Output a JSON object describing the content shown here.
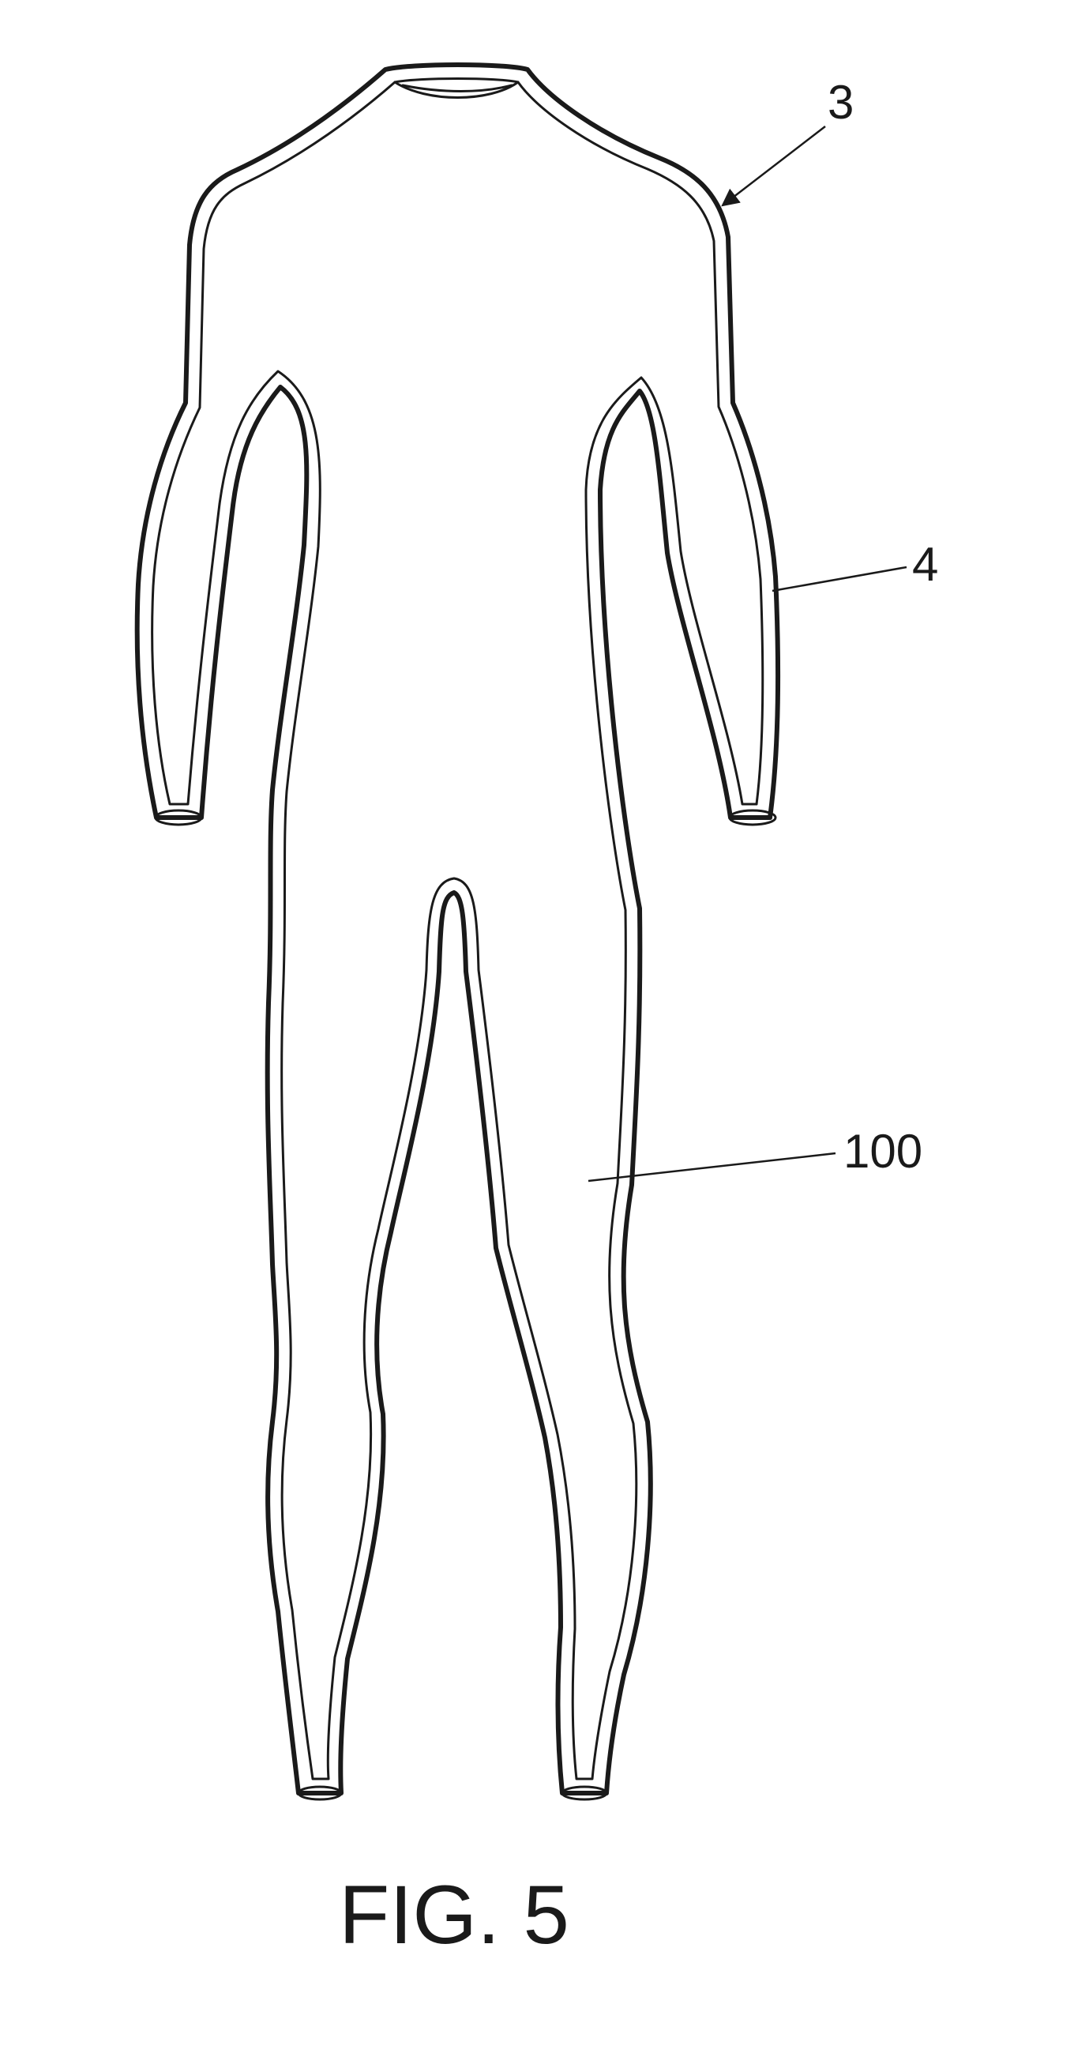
{
  "figure": {
    "caption": "FIG. 5"
  },
  "reference_labels": {
    "seam": "3",
    "lining": "4",
    "suit_body": "100"
  }
}
